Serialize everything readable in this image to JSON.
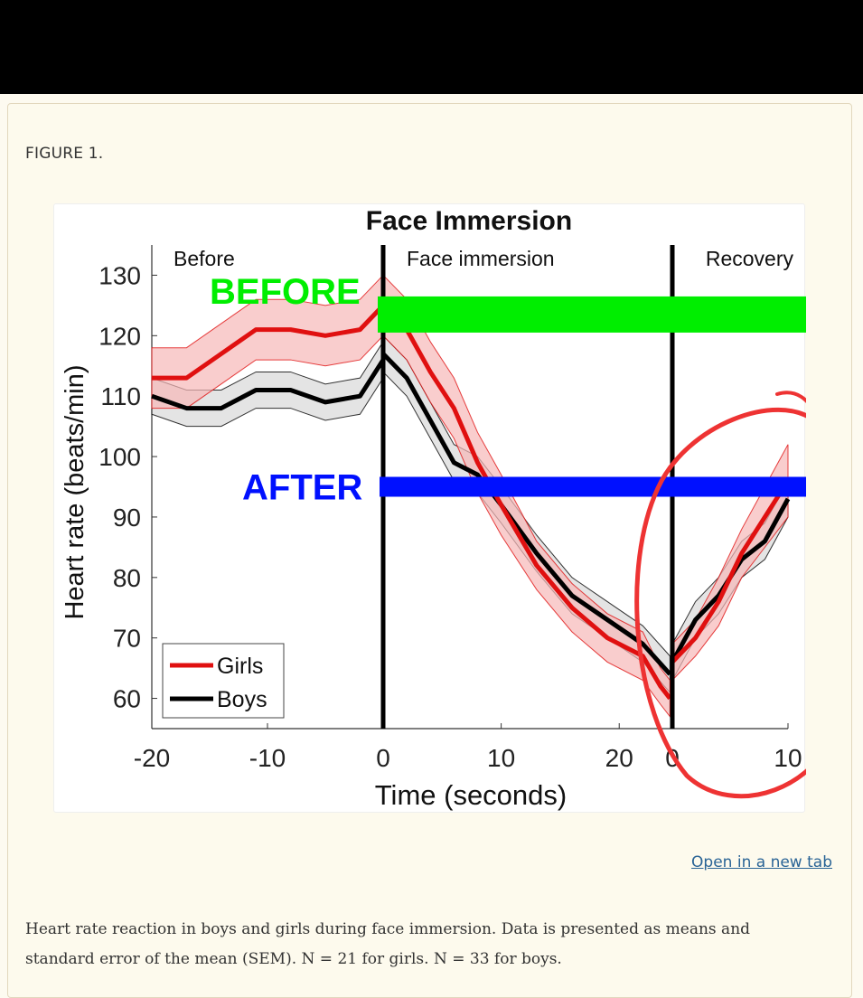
{
  "page": {
    "figure_label": "FIGURE 1.",
    "open_link": "Open in a new tab",
    "caption": "Heart rate reaction in boys and girls during face immersion. Data is presented as means and standard error of the mean (SEM). N = 21 for girls. N = 33 for boys."
  },
  "chart_data": {
    "type": "line",
    "title": "Face Immersion",
    "xlabel": "Time (seconds)",
    "ylabel": "Heart rate (beats/min)",
    "ylim": [
      55,
      135
    ],
    "y_ticks": [
      60,
      70,
      80,
      90,
      100,
      110,
      120,
      130
    ],
    "x_tick_labels": [
      "-20",
      "-10",
      "0",
      "10",
      "20",
      "0",
      "10"
    ],
    "segments": [
      {
        "label": "Before",
        "xlim": [
          -20,
          0
        ]
      },
      {
        "label": "Face immersion",
        "xlim": [
          0,
          24.5
        ]
      },
      {
        "label": "Recovery",
        "xlim": [
          0,
          10
        ]
      }
    ],
    "grid": false,
    "legend_position": "bottom-left",
    "series": [
      {
        "name": "Girls",
        "color": "#e01010",
        "band_color": "#f6b8b8",
        "before": {
          "x": [
            -20,
            -17,
            -14,
            -11,
            -8,
            -5,
            -2,
            0
          ],
          "y": [
            113,
            113,
            117,
            121,
            121,
            120,
            121,
            125
          ],
          "sem": [
            5,
            5,
            5,
            5,
            5,
            5,
            5,
            5
          ]
        },
        "immersion": {
          "x": [
            0,
            2,
            4,
            6,
            8,
            10,
            13,
            16,
            19,
            22,
            23.5,
            24.3
          ],
          "y": [
            125,
            121,
            114,
            108,
            99,
            92,
            82,
            75,
            70,
            67,
            62,
            60
          ],
          "sem": [
            5,
            5,
            5,
            5,
            5,
            5,
            4,
            4,
            4,
            4,
            3,
            3
          ]
        },
        "recovery": {
          "x": [
            0,
            2,
            4,
            6,
            8,
            10
          ],
          "y": [
            66,
            70,
            76,
            84,
            90,
            96
          ],
          "sem": [
            3,
            3,
            4,
            4,
            5,
            6
          ]
        }
      },
      {
        "name": "Boys",
        "color": "#000000",
        "band_color": "#d8d8d8",
        "before": {
          "x": [
            -20,
            -17,
            -14,
            -11,
            -8,
            -5,
            -2,
            0
          ],
          "y": [
            110,
            108,
            108,
            111,
            111,
            109,
            110,
            116
          ],
          "sem": [
            3,
            3,
            3,
            3,
            3,
            3,
            3,
            3
          ]
        },
        "immersion": {
          "x": [
            0,
            2,
            4,
            6,
            8,
            10,
            13,
            16,
            19,
            22,
            24.3
          ],
          "y": [
            117,
            113,
            106,
            99,
            97,
            92,
            84,
            77,
            73,
            69,
            64
          ],
          "sem": [
            3,
            3,
            3,
            3,
            3,
            3,
            3,
            3,
            3,
            3,
            3
          ]
        },
        "recovery": {
          "x": [
            0,
            2,
            4,
            6,
            8,
            10
          ],
          "y": [
            66,
            73,
            77,
            83,
            86,
            93
          ],
          "sem": [
            3,
            3,
            3,
            3,
            3,
            3
          ]
        }
      }
    ],
    "annotations": [
      {
        "text": "BEFORE",
        "color": "#00ee00",
        "bar_y": 123.5
      },
      {
        "text": "AFTER",
        "color": "#0010ff",
        "bar_y": 95
      }
    ]
  }
}
